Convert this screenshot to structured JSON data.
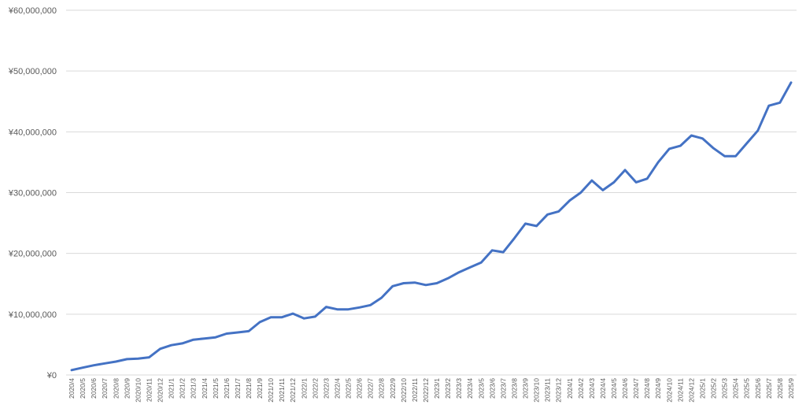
{
  "chart_data": {
    "type": "line",
    "categories": [
      "2020/4",
      "2020/5",
      "2020/6",
      "2020/7",
      "2020/8",
      "2020/9",
      "2020/10",
      "2020/11",
      "2020/12",
      "2021/1",
      "2021/2",
      "2021/3",
      "2021/4",
      "2021/5",
      "2021/6",
      "2021/7",
      "2021/8",
      "2021/9",
      "2021/10",
      "2021/11",
      "2021/12",
      "2022/1",
      "2022/2",
      "2022/3",
      "2022/4",
      "2022/5",
      "2022/6",
      "2022/7",
      "2022/8",
      "2022/9",
      "2022/10",
      "2022/11",
      "2022/12",
      "2023/1",
      "2023/2",
      "2023/3",
      "2023/4",
      "2023/5",
      "2023/6",
      "2023/7",
      "2023/8",
      "2023/9",
      "2023/10",
      "2023/11",
      "2023/12",
      "2024/1",
      "2024/2",
      "2024/3",
      "2024/4",
      "2024/5",
      "2024/6",
      "2024/7",
      "2024/8",
      "2024/9",
      "2024/10",
      "2024/11",
      "2024/12",
      "2025/1",
      "2025/2",
      "2025/3",
      "2025/4",
      "2025/5",
      "2025/6",
      "2025/7",
      "2025/8",
      "2025/9"
    ],
    "values": [
      800000,
      1200000,
      1600000,
      1900000,
      2200000,
      2600000,
      2700000,
      2900000,
      4300000,
      4900000,
      5200000,
      5800000,
      6000000,
      6200000,
      6800000,
      7000000,
      7200000,
      8700000,
      9500000,
      9500000,
      10100000,
      9300000,
      9600000,
      11200000,
      10800000,
      10800000,
      11100000,
      11500000,
      12700000,
      14600000,
      15100000,
      15200000,
      14800000,
      15100000,
      15900000,
      16900000,
      17700000,
      18500000,
      20500000,
      20200000,
      22500000,
      24900000,
      24500000,
      26400000,
      26900000,
      28700000,
      30000000,
      32000000,
      30400000,
      31700000,
      33700000,
      31700000,
      32300000,
      35000000,
      37200000,
      37700000,
      39400000,
      38900000,
      37300000,
      36000000,
      36000000,
      38100000,
      40200000,
      44300000,
      44800000,
      48100000
    ],
    "color": "#4472c4",
    "ylim": [
      0,
      60000000
    ],
    "yticks": [
      {
        "value": 0,
        "label": "¥0"
      },
      {
        "value": 10000000,
        "label": "¥10,000,000"
      },
      {
        "value": 20000000,
        "label": "¥20,000,000"
      },
      {
        "value": 30000000,
        "label": "¥30,000,000"
      },
      {
        "value": 40000000,
        "label": "¥40,000,000"
      },
      {
        "value": 50000000,
        "label": "¥50,000,000"
      },
      {
        "value": 60000000,
        "label": "¥60,000,000"
      }
    ],
    "grid": true
  }
}
